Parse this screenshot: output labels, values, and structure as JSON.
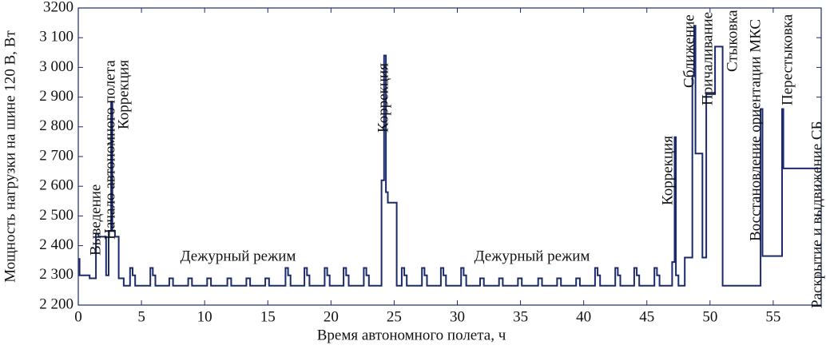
{
  "chart_data": {
    "type": "line",
    "x_label": "Время автономного полета, ч",
    "y_label": "Мощность нагрузки на шине 120 В, Вт",
    "xlim": [
      0,
      58.8
    ],
    "xticks": [
      0,
      5,
      10,
      15,
      20,
      25,
      30,
      35,
      40,
      45,
      50,
      55
    ],
    "ylim": [
      2200,
      3200
    ],
    "yticks": [
      {
        "value": 2200,
        "label": "2 200"
      },
      {
        "value": 2300,
        "label": "2 300"
      },
      {
        "value": 2400,
        "label": "2 400"
      },
      {
        "value": 2500,
        "label": "2 500"
      },
      {
        "value": 2600,
        "label": "2 600"
      },
      {
        "value": 2700,
        "label": "2 700"
      },
      {
        "value": 2800,
        "label": "2 800"
      },
      {
        "value": 2900,
        "label": "2 900"
      },
      {
        "value": 3000,
        "label": "3 000"
      },
      {
        "value": 3100,
        "label": "3 100"
      },
      3200
    ],
    "grid": false,
    "annotations": [
      {
        "text": "Выведение"
      },
      {
        "text": "Начало автономного полета"
      },
      {
        "text": "Коррекция"
      },
      {
        "text": "Дежурный режим"
      },
      {
        "text": "Коррекция"
      },
      {
        "text": "Дежурный режим"
      },
      {
        "text": "Коррекция"
      },
      {
        "text": "Сближение"
      },
      {
        "text": "Причаливание"
      },
      {
        "text": "Стыковка"
      },
      {
        "text": "Восстановление ориентации МКС"
      },
      {
        "text": "Перестыковка"
      },
      {
        "text": "Раскрытие и выдвижение СБ"
      }
    ],
    "series": [
      {
        "color": "#1b2a6b",
        "x": [
          0,
          0.1,
          0.1,
          0.9,
          0.9,
          1.4,
          1.4,
          1.6,
          1.6,
          2.2,
          2.2,
          2.4,
          2.4,
          2.6,
          2.6,
          2.7,
          2.7,
          2.9,
          2.9,
          3.2,
          3.2,
          3.6,
          3.6,
          4.1,
          4.1,
          4.3,
          4.3,
          4.5,
          4.5,
          5.7,
          5.7,
          5.9,
          5.9,
          6.1,
          6.1,
          7.2,
          7.2,
          7.5,
          7.5,
          8.7,
          8.7,
          9.0,
          9.0,
          10.2,
          10.2,
          10.5,
          10.5,
          11.8,
          11.8,
          12.1,
          12.1,
          13.3,
          13.3,
          13.6,
          13.6,
          14.8,
          14.8,
          15.1,
          15.1,
          16.4,
          16.4,
          16.6,
          16.6,
          16.8,
          16.8,
          17.9,
          17.9,
          18.1,
          18.1,
          18.3,
          18.3,
          19.5,
          19.5,
          19.7,
          19.7,
          19.9,
          19.9,
          21,
          21,
          21.2,
          21.2,
          21.4,
          21.4,
          22.6,
          22.6,
          22.8,
          22.8,
          23,
          23,
          24,
          24,
          24.2,
          24.2,
          24.35,
          24.35,
          24.5,
          24.5,
          25.2,
          25.2,
          25.6,
          25.6,
          25.8,
          25.8,
          26,
          26,
          27.2,
          27.2,
          27.4,
          27.4,
          27.6,
          27.6,
          28.7,
          28.7,
          28.9,
          28.9,
          29.1,
          29.1,
          30.3,
          30.3,
          30.5,
          30.5,
          30.7,
          30.7,
          31.8,
          31.8,
          32.1,
          32.1,
          33.3,
          33.3,
          33.6,
          33.6,
          34.8,
          34.8,
          35.1,
          35.1,
          36.4,
          36.4,
          36.7,
          36.7,
          37.9,
          37.9,
          38.2,
          38.2,
          39.4,
          39.4,
          39.7,
          39.7,
          40.9,
          40.9,
          41.1,
          41.1,
          41.3,
          41.3,
          42.5,
          42.5,
          42.7,
          42.7,
          42.9,
          42.9,
          44,
          44,
          44.2,
          44.2,
          44.4,
          44.4,
          45.6,
          45.6,
          45.8,
          45.8,
          46,
          46,
          47,
          47,
          47.2,
          47.2,
          47.3,
          47.3,
          47.5,
          47.5,
          48,
          48,
          48.6,
          48.6,
          48.75,
          48.75,
          48.85,
          48.85,
          49.4,
          49.4,
          49.7,
          49.7,
          50.4,
          50.4,
          51,
          51,
          54,
          54,
          54.15,
          54.15,
          55.7,
          55.7,
          55.8,
          55.8,
          58.8
        ],
        "values": [
          2355,
          2355,
          2300,
          2300,
          2290,
          2290,
          2440,
          2440,
          2430,
          2430,
          2300,
          2300,
          2450,
          2450,
          2885,
          2885,
          2450,
          2450,
          2430,
          2430,
          2290,
          2290,
          2265,
          2265,
          2325,
          2325,
          2300,
          2300,
          2265,
          2265,
          2325,
          2325,
          2300,
          2300,
          2265,
          2265,
          2290,
          2290,
          2265,
          2265,
          2290,
          2290,
          2265,
          2265,
          2290,
          2290,
          2265,
          2265,
          2290,
          2290,
          2265,
          2265,
          2290,
          2290,
          2265,
          2265,
          2290,
          2290,
          2265,
          2265,
          2325,
          2325,
          2300,
          2300,
          2265,
          2265,
          2325,
          2325,
          2300,
          2300,
          2265,
          2265,
          2325,
          2325,
          2300,
          2300,
          2265,
          2265,
          2325,
          2325,
          2300,
          2300,
          2265,
          2265,
          2325,
          2325,
          2300,
          2300,
          2265,
          2265,
          2620,
          2620,
          3040,
          3040,
          2580,
          2580,
          2545,
          2545,
          2265,
          2265,
          2325,
          2325,
          2300,
          2300,
          2265,
          2265,
          2325,
          2325,
          2300,
          2300,
          2265,
          2265,
          2325,
          2325,
          2300,
          2300,
          2265,
          2265,
          2325,
          2325,
          2300,
          2300,
          2265,
          2265,
          2290,
          2290,
          2265,
          2265,
          2290,
          2290,
          2265,
          2265,
          2290,
          2290,
          2265,
          2265,
          2290,
          2290,
          2265,
          2265,
          2290,
          2290,
          2265,
          2265,
          2290,
          2290,
          2265,
          2265,
          2325,
          2325,
          2300,
          2300,
          2265,
          2265,
          2325,
          2325,
          2300,
          2300,
          2265,
          2265,
          2325,
          2325,
          2300,
          2300,
          2265,
          2265,
          2325,
          2325,
          2300,
          2300,
          2265,
          2265,
          2345,
          2345,
          2765,
          2765,
          2300,
          2300,
          2265,
          2265,
          2360,
          2360,
          2970,
          2970,
          3140,
          3140,
          2710,
          2710,
          2360,
          2360,
          2910,
          2910,
          3070,
          3070,
          2265,
          2265,
          2860,
          2860,
          2365,
          2365,
          2860,
          2860,
          2660,
          2660
        ]
      }
    ]
  }
}
